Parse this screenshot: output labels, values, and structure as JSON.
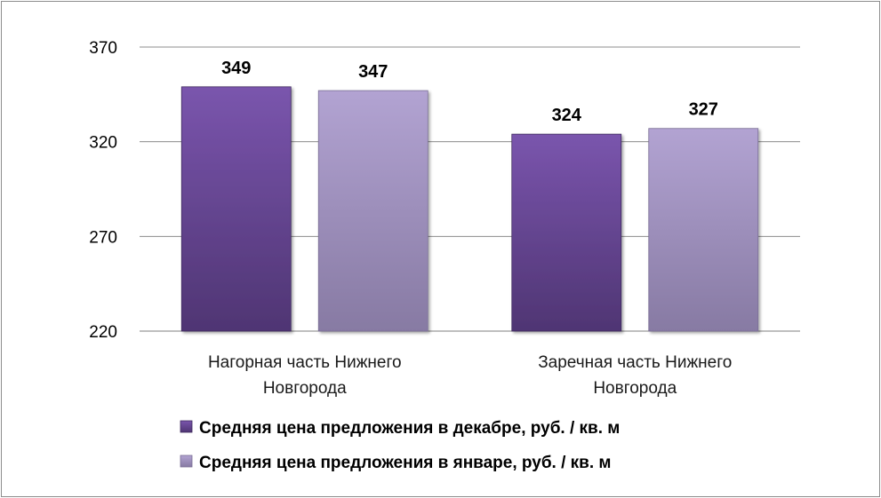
{
  "chart_data": {
    "type": "bar",
    "title": "",
    "xlabel": "",
    "ylabel": "",
    "categories": [
      [
        "Нагорная часть Нижнего",
        "Новгорода"
      ],
      [
        "Заречная часть Нижнего",
        "Новгорода"
      ]
    ],
    "series": [
      {
        "name": "Средняя цена предложения в декабре, руб. / кв. м",
        "values": [
          349,
          324
        ],
        "color": "#6f4c9b"
      },
      {
        "name": "Средняя цена предложения в январе, руб. / кв. м",
        "values": [
          347,
          327
        ],
        "color": "#a797c8"
      }
    ],
    "ylim": [
      220,
      370
    ],
    "yticks": [
      220,
      270,
      320,
      370
    ],
    "grid": true,
    "legend_position": "bottom"
  }
}
